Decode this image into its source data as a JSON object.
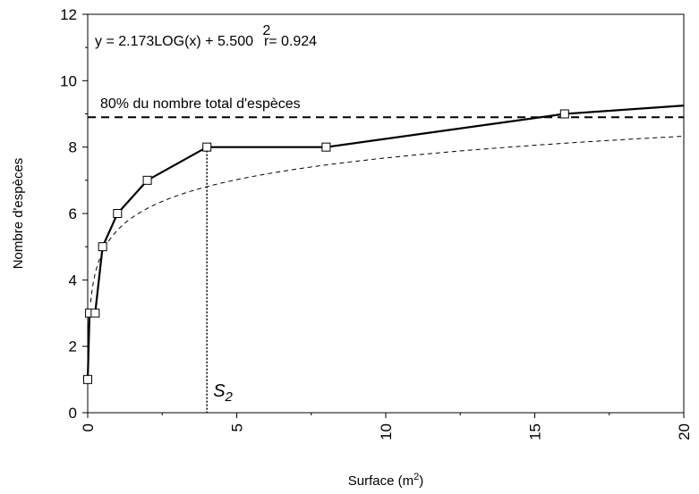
{
  "chart_data": {
    "type": "line",
    "xlabel": "Surface (m",
    "xlabel_sup": "2",
    "xlabel_end": ")",
    "ylabel": "Nombre d'espèces",
    "xlim": [
      0,
      20
    ],
    "ylim": [
      0,
      12
    ],
    "x_ticks": [
      "0",
      "5",
      "10",
      "15",
      "20"
    ],
    "y_ticks": [
      "0",
      "2",
      "4",
      "6",
      "8",
      "10",
      "12"
    ],
    "x_tick_values": [
      0,
      5,
      10,
      15,
      20
    ],
    "y_tick_values": [
      0,
      2,
      4,
      6,
      8,
      10,
      12
    ],
    "grid": false,
    "series": [
      {
        "style": "solid-markers",
        "x": [
          0,
          0.0625,
          0.25,
          0.5,
          1,
          2,
          4,
          8,
          16,
          20
        ],
        "y": [
          1,
          3,
          3,
          5,
          6,
          7,
          8,
          8,
          9,
          9.25
        ]
      }
    ],
    "fit_curve": {
      "style": "dashed",
      "equation": "y = 2.173LOG(x) + 5.500",
      "r2_exp": "2",
      "r2_label": "r",
      "r2_value": "= 0.924",
      "slope": 2.173,
      "intercept": 5.5
    },
    "reference_line": {
      "y": 8.9,
      "label": "80% du nombre total d'espèces"
    },
    "marker_line": {
      "x": 4,
      "y_top": 8,
      "label": "S",
      "label_sub": "2"
    }
  }
}
